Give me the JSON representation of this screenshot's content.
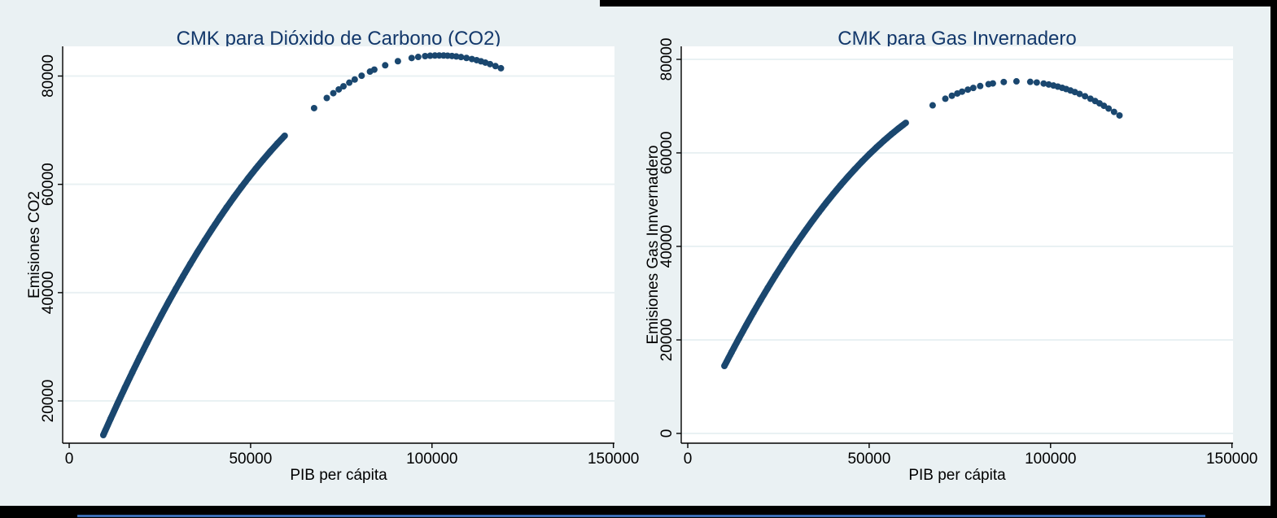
{
  "window": {
    "background_color": "#eaf1f3",
    "edge_color": "#000000",
    "accent_line_color": "#3a6cb4",
    "title_color": "#13386b"
  },
  "chart_data": [
    {
      "type": "scatter",
      "title": "CMK para Dióxido de Carbono (CO2)",
      "xlabel": "PIB per cápita",
      "ylabel": "Emisiones CO2",
      "xticks": [
        0,
        50000,
        100000,
        150000
      ],
      "yticks": [
        20000,
        40000,
        60000,
        80000
      ],
      "xlim": [
        -1800,
        150300
      ],
      "ylim": [
        12200,
        85480
      ],
      "grid": "horizontal",
      "legend": "none",
      "plot_bg": "#ffffff",
      "grid_color": "#e9f1f3",
      "axis_color": "#000000",
      "marker_color": "#1a476f",
      "series": [
        {
          "style": "band",
          "points": [
            [
              9400,
              13702
            ],
            [
              11400,
              16697
            ],
            [
              13400,
              19627
            ],
            [
              15400,
              22491
            ],
            [
              17400,
              25290
            ],
            [
              19400,
              28024
            ],
            [
              21400,
              30692
            ],
            [
              23400,
              33295
            ],
            [
              25400,
              35833
            ],
            [
              27400,
              38305
            ],
            [
              29400,
              40711
            ],
            [
              31400,
              43053
            ],
            [
              33400,
              45329
            ],
            [
              35400,
              47539
            ],
            [
              37400,
              49684
            ],
            [
              39400,
              51764
            ],
            [
              41400,
              53778
            ],
            [
              43400,
              55727
            ],
            [
              45400,
              57611
            ],
            [
              47400,
              59429
            ],
            [
              49400,
              61182
            ],
            [
              51400,
              62869
            ],
            [
              53400,
              64491
            ],
            [
              55400,
              66048
            ],
            [
              57400,
              67539
            ],
            [
              59400,
              68964
            ]
          ]
        },
        {
          "style": "dots",
          "points": [
            [
              67500,
              74070
            ],
            [
              71000,
              75944
            ],
            [
              72800,
              76830
            ],
            [
              74300,
              77527
            ],
            [
              75600,
              78102
            ],
            [
              77200,
              78772
            ],
            [
              78700,
              79362
            ],
            [
              80600,
              80056
            ],
            [
              82900,
              80818
            ],
            [
              84100,
              81181
            ],
            [
              87100,
              81985
            ],
            [
              90600,
              82738
            ],
            [
              94400,
              83328
            ],
            [
              96200,
              83525
            ],
            [
              98100,
              83676
            ],
            [
              99500,
              83749
            ],
            [
              100800,
              83788
            ],
            [
              102000,
              83800
            ],
            [
              103200,
              83788
            ],
            [
              104300,
              83757
            ],
            [
              105500,
              83700
            ],
            [
              106700,
              83619
            ],
            [
              108000,
              83506
            ],
            [
              109500,
              83340
            ],
            [
              111000,
              83138
            ],
            [
              112300,
              82933
            ],
            [
              113500,
              82719
            ],
            [
              114700,
              82481
            ],
            [
              116000,
              82198
            ],
            [
              117500,
              81836
            ],
            [
              119000,
              81437
            ]
          ]
        }
      ]
    },
    {
      "type": "scatter",
      "title": "CMK para Gas Invernadero",
      "xlabel": "PIB per cápita",
      "ylabel": "Emisiones Gas Innvernadero",
      "xticks": [
        0,
        50000,
        100000,
        150000
      ],
      "yticks": [
        0,
        20000,
        40000,
        60000,
        80000
      ],
      "xlim": [
        -1800,
        150300
      ],
      "ylim": [
        -2087,
        82783
      ],
      "grid": "horizontal",
      "legend": "none",
      "plot_bg": "#ffffff",
      "grid_color": "#e9f1f3",
      "axis_color": "#000000",
      "marker_color": "#1a476f",
      "series": [
        {
          "style": "band",
          "points": [
            [
              10100,
              14433
            ],
            [
              12100,
              17406
            ],
            [
              14100,
              20303
            ],
            [
              16100,
              23127
            ],
            [
              18100,
              25876
            ],
            [
              20100,
              28551
            ],
            [
              22100,
              31151
            ],
            [
              24100,
              33677
            ],
            [
              26100,
              36128
            ],
            [
              28100,
              38505
            ],
            [
              30100,
              40808
            ],
            [
              32100,
              43036
            ],
            [
              34100,
              45190
            ],
            [
              36100,
              47270
            ],
            [
              38100,
              49275
            ],
            [
              40100,
              51205
            ],
            [
              42100,
              53062
            ],
            [
              44100,
              54844
            ],
            [
              46100,
              56551
            ],
            [
              48100,
              58184
            ],
            [
              50100,
              59743
            ],
            [
              52100,
              61227
            ],
            [
              54100,
              62637
            ],
            [
              56100,
              63972
            ],
            [
              58100,
              65234
            ],
            [
              60100,
              66420
            ]
          ]
        },
        {
          "style": "dots",
          "points": [
            [
              67500,
              70164
            ],
            [
              71000,
              71580
            ],
            [
              72800,
              72219
            ],
            [
              74300,
              72706
            ],
            [
              75600,
              73094
            ],
            [
              77200,
              73529
            ],
            [
              78700,
              73893
            ],
            [
              80600,
              74294
            ],
            [
              82900,
              74690
            ],
            [
              84100,
              74857
            ],
            [
              87100,
              75159
            ],
            [
              90600,
              75299
            ],
            [
              94400,
              75192
            ],
            [
              96200,
              75049
            ],
            [
              98100,
              74831
            ],
            [
              99500,
              74628
            ],
            [
              100800,
              74407
            ],
            [
              102000,
              74175
            ],
            [
              103200,
              73916
            ],
            [
              104300,
              73655
            ],
            [
              105500,
              73345
            ],
            [
              106700,
              73008
            ],
            [
              108000,
              72612
            ],
            [
              109500,
              72117
            ],
            [
              111000,
              71580
            ],
            [
              112300,
              71081
            ],
            [
              113500,
              70592
            ],
            [
              114700,
              70076
            ],
            [
              116000,
              69487
            ],
            [
              117500,
              68769
            ],
            [
              119000,
              68009
            ]
          ]
        }
      ]
    }
  ]
}
